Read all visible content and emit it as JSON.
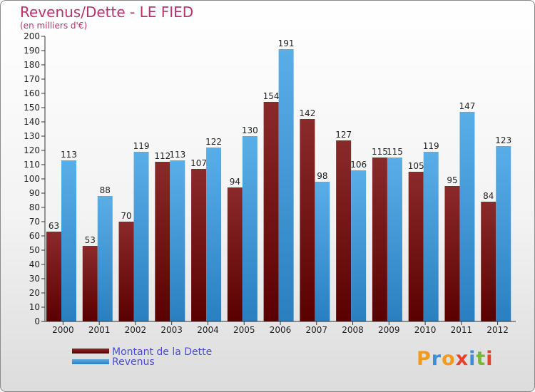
{
  "title": "Revenus/Dette - LE FIED",
  "subtitle": "(en milliers d'€)",
  "colors": {
    "dette_top": "#8b2a2a",
    "dette_bottom": "#5a0000",
    "revenus_top": "#5aaee8",
    "revenus_bottom": "#2a7fc0"
  },
  "logo": {
    "letters": [
      "P",
      "r",
      "o",
      "x",
      "i",
      "t",
      "i"
    ],
    "colors": [
      "#f39a1e",
      "#3b8fd8",
      "#f39a1e",
      "#e8402a",
      "#3b8fd8",
      "#7ab63a",
      "#e8402a"
    ]
  },
  "chart_data": {
    "type": "bar",
    "categories": [
      "2000",
      "2001",
      "2002",
      "2003",
      "2004",
      "2005",
      "2006",
      "2007",
      "2008",
      "2009",
      "2010",
      "2011",
      "2012"
    ],
    "series": [
      {
        "name": "Montant de la Dette",
        "values": [
          63,
          53,
          70,
          112,
          107,
          94,
          154,
          142,
          127,
          115,
          105,
          95,
          84
        ]
      },
      {
        "name": "Revenus",
        "values": [
          113,
          88,
          119,
          113,
          122,
          130,
          191,
          98,
          106,
          115,
          119,
          147,
          123
        ]
      }
    ],
    "ylim": [
      0,
      200
    ],
    "ytick_step": 10,
    "grid": false,
    "legend": "bottom-left"
  }
}
